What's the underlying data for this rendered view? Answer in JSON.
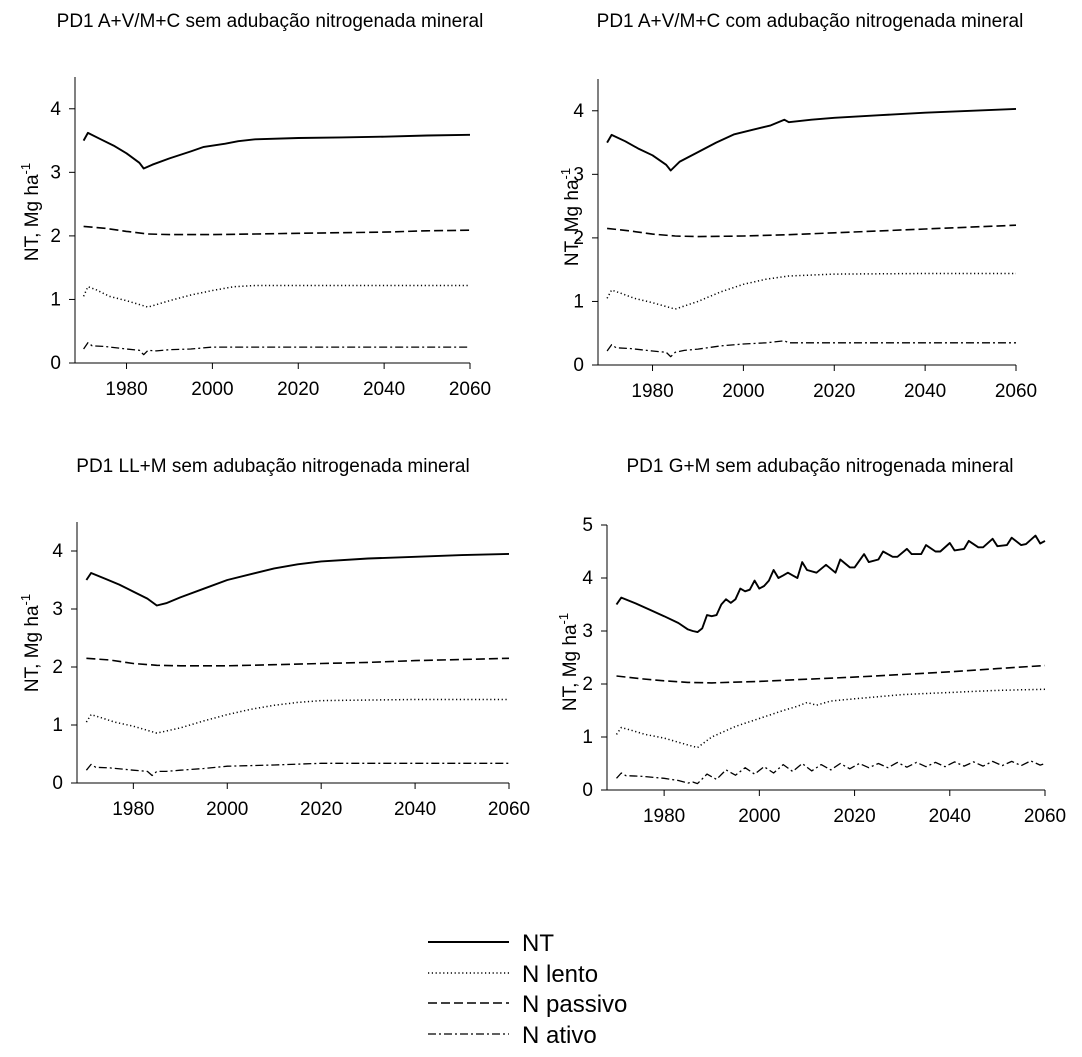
{
  "chart_data": [
    {
      "type": "line",
      "title": "PD1 A+V/M+C sem adubação nitrogenada mineral",
      "ylabel": "NT, Mg ha",
      "ylabel_sup": "-1",
      "xlabel": "",
      "xlim": [
        1968,
        2060
      ],
      "ylim": [
        0,
        4.5
      ],
      "x_ticks": [
        1980,
        2000,
        2020,
        2040,
        2060
      ],
      "y_ticks": [
        0,
        1,
        2,
        3,
        4
      ],
      "series": [
        {
          "name": "NT",
          "style": "solid",
          "x": [
            1970,
            1971,
            1974,
            1977,
            1980,
            1983,
            1984,
            1986,
            1990,
            1995,
            1998,
            2003,
            2006,
            2010,
            2020,
            2030,
            2040,
            2050,
            2060
          ],
          "y": [
            3.5,
            3.62,
            3.52,
            3.42,
            3.3,
            3.15,
            3.06,
            3.12,
            3.22,
            3.33,
            3.4,
            3.45,
            3.49,
            3.52,
            3.54,
            3.55,
            3.56,
            3.58,
            3.59
          ]
        },
        {
          "name": "N passivo",
          "style": "dashed",
          "x": [
            1970,
            1975,
            1980,
            1985,
            1990,
            2000,
            2010,
            2020,
            2030,
            2040,
            2050,
            2060
          ],
          "y": [
            2.15,
            2.12,
            2.07,
            2.03,
            2.02,
            2.02,
            2.03,
            2.04,
            2.05,
            2.06,
            2.08,
            2.09
          ]
        },
        {
          "name": "N lento",
          "style": "dotted",
          "x": [
            1970,
            1971,
            1973,
            1976,
            1980,
            1985,
            1990,
            1995,
            2000,
            2005,
            2010,
            2020,
            2040,
            2060
          ],
          "y": [
            1.05,
            1.2,
            1.15,
            1.05,
            0.98,
            0.88,
            0.98,
            1.07,
            1.14,
            1.2,
            1.22,
            1.22,
            1.22,
            1.22
          ]
        },
        {
          "name": "N ativo",
          "style": "dashdot",
          "x": [
            1970,
            1971,
            1972,
            1975,
            1980,
            1983,
            1984,
            1985,
            1987,
            1990,
            1995,
            2000,
            2010,
            2020,
            2060
          ],
          "y": [
            0.22,
            0.32,
            0.27,
            0.26,
            0.22,
            0.2,
            0.13,
            0.2,
            0.19,
            0.21,
            0.22,
            0.25,
            0.25,
            0.25,
            0.25
          ]
        }
      ]
    },
    {
      "type": "line",
      "title": "PD1 A+V/M+C com adubação nitrogenada mineral",
      "ylabel": "NT, Mg ha",
      "ylabel_sup": "-1",
      "xlabel": "",
      "xlim": [
        1968,
        2060
      ],
      "ylim": [
        0,
        4.5
      ],
      "x_ticks": [
        1980,
        2000,
        2020,
        2040,
        2060
      ],
      "y_ticks": [
        0,
        1,
        2,
        3,
        4
      ],
      "series": [
        {
          "name": "NT",
          "style": "solid",
          "x": [
            1970,
            1971,
            1974,
            1977,
            1980,
            1983,
            1984,
            1986,
            1990,
            1994,
            1998,
            2002,
            2006,
            2009,
            2010,
            2015,
            2020,
            2030,
            2040,
            2050,
            2060
          ],
          "y": [
            3.5,
            3.62,
            3.52,
            3.4,
            3.3,
            3.15,
            3.06,
            3.2,
            3.35,
            3.5,
            3.63,
            3.7,
            3.77,
            3.86,
            3.82,
            3.86,
            3.89,
            3.93,
            3.97,
            4.0,
            4.03
          ]
        },
        {
          "name": "N passivo",
          "style": "dashed",
          "x": [
            1970,
            1975,
            1980,
            1985,
            1990,
            2000,
            2010,
            2020,
            2030,
            2040,
            2050,
            2060
          ],
          "y": [
            2.15,
            2.11,
            2.06,
            2.03,
            2.02,
            2.03,
            2.05,
            2.08,
            2.11,
            2.14,
            2.17,
            2.2
          ]
        },
        {
          "name": "N lento",
          "style": "dotted",
          "x": [
            1970,
            1971,
            1973,
            1976,
            1980,
            1985,
            1990,
            1995,
            2000,
            2005,
            2010,
            2020,
            2040,
            2060
          ],
          "y": [
            1.05,
            1.18,
            1.13,
            1.05,
            0.98,
            0.88,
            1.0,
            1.15,
            1.27,
            1.35,
            1.4,
            1.43,
            1.44,
            1.44
          ]
        },
        {
          "name": "N ativo",
          "style": "dashdot",
          "x": [
            1970,
            1971,
            1972,
            1975,
            1980,
            1983,
            1984,
            1985,
            1987,
            1990,
            1995,
            2000,
            2005,
            2009,
            2010,
            2020,
            2060
          ],
          "y": [
            0.22,
            0.32,
            0.27,
            0.26,
            0.22,
            0.2,
            0.13,
            0.2,
            0.23,
            0.25,
            0.3,
            0.33,
            0.35,
            0.38,
            0.35,
            0.35,
            0.35
          ]
        }
      ]
    },
    {
      "type": "line",
      "title": "PD1 LL+M sem adubação nitrogenada mineral",
      "ylabel": "NT, Mg ha",
      "ylabel_sup": "-1",
      "xlabel": "",
      "xlim": [
        1968,
        2060
      ],
      "ylim": [
        0,
        4.5
      ],
      "x_ticks": [
        1980,
        2000,
        2020,
        2040,
        2060
      ],
      "y_ticks": [
        0,
        1,
        2,
        3,
        4
      ],
      "series": [
        {
          "name": "NT",
          "style": "solid",
          "x": [
            1970,
            1971,
            1974,
            1977,
            1980,
            1983,
            1985,
            1987,
            1990,
            1995,
            2000,
            2005,
            2010,
            2015,
            2020,
            2030,
            2040,
            2050,
            2060
          ],
          "y": [
            3.5,
            3.62,
            3.52,
            3.42,
            3.3,
            3.18,
            3.06,
            3.1,
            3.2,
            3.35,
            3.5,
            3.6,
            3.7,
            3.77,
            3.82,
            3.87,
            3.9,
            3.93,
            3.95
          ]
        },
        {
          "name": "N passivo",
          "style": "dashed",
          "x": [
            1970,
            1975,
            1980,
            1985,
            1990,
            2000,
            2010,
            2020,
            2030,
            2040,
            2050,
            2060
          ],
          "y": [
            2.15,
            2.12,
            2.06,
            2.03,
            2.02,
            2.02,
            2.04,
            2.06,
            2.08,
            2.11,
            2.13,
            2.15
          ]
        },
        {
          "name": "N lento",
          "style": "dotted",
          "x": [
            1970,
            1971,
            1973,
            1976,
            1980,
            1985,
            1990,
            1995,
            2000,
            2005,
            2010,
            2015,
            2020,
            2040,
            2060
          ],
          "y": [
            1.05,
            1.18,
            1.13,
            1.05,
            0.98,
            0.86,
            0.95,
            1.07,
            1.18,
            1.27,
            1.34,
            1.39,
            1.42,
            1.44,
            1.44
          ]
        },
        {
          "name": "N ativo",
          "style": "dashdot",
          "x": [
            1970,
            1971,
            1972,
            1975,
            1980,
            1983,
            1984,
            1985,
            1987,
            1990,
            1995,
            2000,
            2005,
            2010,
            2020,
            2060
          ],
          "y": [
            0.22,
            0.32,
            0.27,
            0.26,
            0.22,
            0.2,
            0.13,
            0.2,
            0.2,
            0.22,
            0.25,
            0.29,
            0.3,
            0.31,
            0.34,
            0.34
          ]
        }
      ]
    },
    {
      "type": "line",
      "title": "PD1 G+M sem adubação nitrogenada mineral",
      "ylabel": "NT, Mg ha",
      "ylabel_sup": "-1",
      "xlabel": "",
      "xlim": [
        1968,
        2060
      ],
      "ylim": [
        0,
        5
      ],
      "x_ticks": [
        1980,
        2000,
        2020,
        2040,
        2060
      ],
      "y_ticks": [
        0,
        1,
        2,
        3,
        4,
        5
      ],
      "series": [
        {
          "name": "NT",
          "style": "solid",
          "x": [
            1970,
            1971,
            1974,
            1977,
            1980,
            1983,
            1985,
            1986,
            1987,
            1988,
            1989,
            1990,
            1991,
            1992,
            1993,
            1994,
            1995,
            1996,
            1997,
            1998,
            1999,
            2000,
            2001,
            2002,
            2003,
            2004,
            2005,
            2006,
            2007,
            2008,
            2009,
            2010,
            2012,
            2014,
            2016,
            2017,
            2019,
            2020,
            2022,
            2023,
            2025,
            2026,
            2028,
            2029,
            2031,
            2032,
            2034,
            2035,
            2037,
            2038,
            2040,
            2041,
            2043,
            2044,
            2046,
            2047,
            2049,
            2050,
            2052,
            2053,
            2055,
            2056,
            2058,
            2059,
            2060
          ],
          "y": [
            3.5,
            3.63,
            3.52,
            3.4,
            3.28,
            3.15,
            3.03,
            3.0,
            2.98,
            3.05,
            3.3,
            3.28,
            3.3,
            3.5,
            3.6,
            3.53,
            3.6,
            3.8,
            3.75,
            3.78,
            3.95,
            3.8,
            3.85,
            3.95,
            4.15,
            4.0,
            4.05,
            4.1,
            4.05,
            4.0,
            4.3,
            4.15,
            4.1,
            4.25,
            4.1,
            4.35,
            4.2,
            4.2,
            4.45,
            4.3,
            4.35,
            4.5,
            4.4,
            4.4,
            4.55,
            4.45,
            4.45,
            4.62,
            4.5,
            4.5,
            4.66,
            4.52,
            4.55,
            4.7,
            4.58,
            4.58,
            4.74,
            4.6,
            4.62,
            4.76,
            4.62,
            4.64,
            4.8,
            4.65,
            4.7
          ]
        },
        {
          "name": "N passivo",
          "style": "dashed",
          "x": [
            1970,
            1975,
            1980,
            1985,
            1990,
            2000,
            2010,
            2020,
            2030,
            2040,
            2050,
            2060
          ],
          "y": [
            2.15,
            2.1,
            2.06,
            2.03,
            2.02,
            2.05,
            2.09,
            2.13,
            2.18,
            2.23,
            2.29,
            2.35
          ]
        },
        {
          "name": "N lento",
          "style": "dotted",
          "x": [
            1970,
            1971,
            1973,
            1976,
            1980,
            1985,
            1987,
            1990,
            1995,
            2000,
            2005,
            2008,
            2010,
            2012,
            2015,
            2020,
            2025,
            2030,
            2035,
            2040,
            2045,
            2050,
            2055,
            2060
          ],
          "y": [
            1.05,
            1.18,
            1.13,
            1.05,
            0.98,
            0.85,
            0.8,
            1.0,
            1.2,
            1.35,
            1.5,
            1.58,
            1.65,
            1.6,
            1.68,
            1.72,
            1.76,
            1.8,
            1.82,
            1.84,
            1.86,
            1.88,
            1.89,
            1.9
          ]
        },
        {
          "name": "N ativo",
          "style": "dashdot",
          "x": [
            1970,
            1971,
            1972,
            1975,
            1980,
            1983,
            1985,
            1986,
            1987,
            1989,
            1991,
            1993,
            1995,
            1997,
            1999,
            2001,
            2003,
            2005,
            2007,
            2009,
            2011,
            2013,
            2015,
            2017,
            2019,
            2021,
            2023,
            2025,
            2027,
            2029,
            2031,
            2033,
            2035,
            2037,
            2039,
            2041,
            2043,
            2045,
            2047,
            2049,
            2051,
            2053,
            2055,
            2057,
            2059,
            2060
          ],
          "y": [
            0.22,
            0.32,
            0.27,
            0.26,
            0.22,
            0.18,
            0.13,
            0.15,
            0.12,
            0.3,
            0.2,
            0.38,
            0.28,
            0.42,
            0.3,
            0.44,
            0.32,
            0.48,
            0.35,
            0.5,
            0.36,
            0.48,
            0.38,
            0.5,
            0.4,
            0.5,
            0.42,
            0.5,
            0.42,
            0.52,
            0.43,
            0.52,
            0.44,
            0.52,
            0.44,
            0.53,
            0.45,
            0.53,
            0.45,
            0.54,
            0.46,
            0.54,
            0.46,
            0.55,
            0.47,
            0.5
          ]
        }
      ]
    }
  ],
  "legend": [
    {
      "label": "NT",
      "style": "solid"
    },
    {
      "label": "N lento",
      "style": "dotted"
    },
    {
      "label": "N passivo",
      "style": "dashed"
    },
    {
      "label": "N ativo",
      "style": "dashdot"
    }
  ]
}
